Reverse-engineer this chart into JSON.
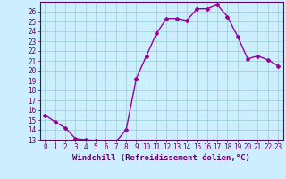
{
  "x": [
    0,
    1,
    2,
    3,
    4,
    5,
    6,
    7,
    8,
    9,
    10,
    11,
    12,
    13,
    14,
    15,
    16,
    17,
    18,
    19,
    20,
    21,
    22,
    23
  ],
  "y": [
    15.5,
    14.8,
    14.2,
    13.1,
    13.0,
    12.9,
    12.8,
    12.8,
    14.0,
    19.2,
    21.5,
    23.8,
    25.3,
    25.3,
    25.1,
    26.3,
    26.3,
    26.7,
    25.5,
    23.5,
    21.2,
    21.5,
    21.1,
    20.5
  ],
  "line_color": "#990099",
  "marker": "D",
  "marker_size": 2,
  "bg_color": "#cceeff",
  "grid_color": "#99cccc",
  "xlabel": "Windchill (Refroidissement éolien,°C)",
  "xlim": [
    -0.5,
    23.5
  ],
  "ylim": [
    13,
    27
  ],
  "yticks": [
    13,
    14,
    15,
    16,
    17,
    18,
    19,
    20,
    21,
    22,
    23,
    24,
    25,
    26
  ],
  "xticks": [
    0,
    1,
    2,
    3,
    4,
    5,
    6,
    7,
    8,
    9,
    10,
    11,
    12,
    13,
    14,
    15,
    16,
    17,
    18,
    19,
    20,
    21,
    22,
    23
  ],
  "tick_label_size": 5.5,
  "xlabel_size": 6.5,
  "axis_color": "#660066",
  "line_width": 1.0
}
